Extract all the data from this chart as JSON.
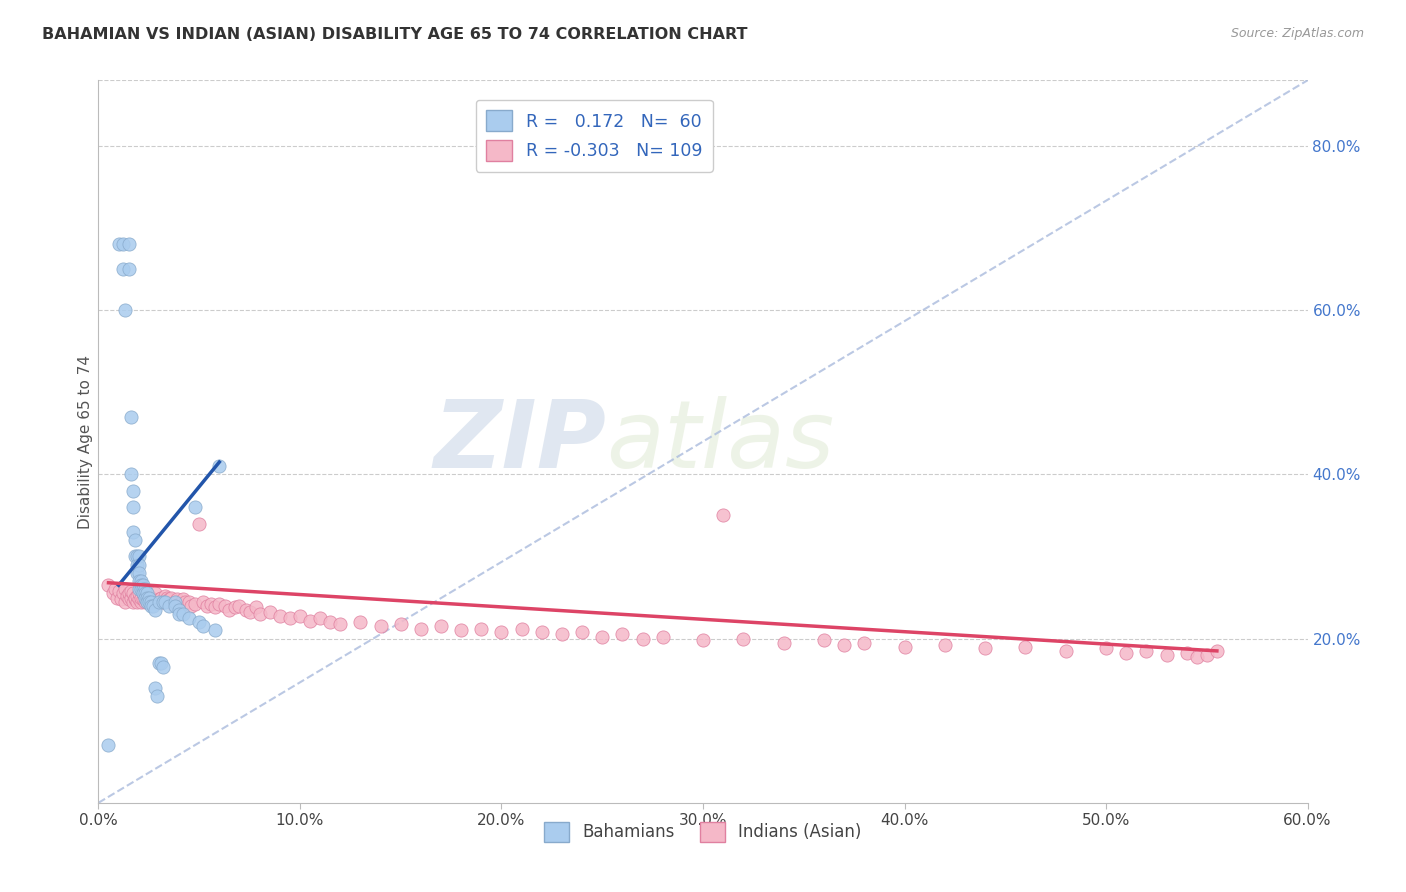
{
  "title": "BAHAMIAN VS INDIAN (ASIAN) DISABILITY AGE 65 TO 74 CORRELATION CHART",
  "source": "Source: ZipAtlas.com",
  "xlabel": "",
  "ylabel": "Disability Age 65 to 74",
  "xlim": [
    0.0,
    0.6
  ],
  "ylim": [
    0.0,
    0.88
  ],
  "xticks": [
    0.0,
    0.1,
    0.2,
    0.3,
    0.4,
    0.5,
    0.6
  ],
  "yticks_right": [
    0.2,
    0.4,
    0.6,
    0.8
  ],
  "legend1_label": "Bahamians",
  "legend2_label": "Indians (Asian)",
  "R1": 0.172,
  "N1": 60,
  "R2": -0.303,
  "N2": 109,
  "blue_dot_color": "#aaccee",
  "blue_edge_color": "#88aacc",
  "pink_dot_color": "#f5b8c8",
  "pink_edge_color": "#e080a0",
  "trend_blue": "#2255aa",
  "trend_pink": "#dd4466",
  "ref_line_color": "#aabbdd",
  "watermark_color": "#dde8f0",
  "bahamians_x": [
    0.005,
    0.01,
    0.012,
    0.012,
    0.013,
    0.015,
    0.015,
    0.016,
    0.016,
    0.017,
    0.017,
    0.017,
    0.018,
    0.018,
    0.019,
    0.019,
    0.019,
    0.02,
    0.02,
    0.02,
    0.02,
    0.02,
    0.021,
    0.021,
    0.021,
    0.022,
    0.022,
    0.022,
    0.023,
    0.023,
    0.023,
    0.024,
    0.024,
    0.024,
    0.025,
    0.025,
    0.026,
    0.026,
    0.027,
    0.028,
    0.028,
    0.029,
    0.03,
    0.03,
    0.031,
    0.032,
    0.032,
    0.033,
    0.035,
    0.038,
    0.038,
    0.04,
    0.04,
    0.042,
    0.045,
    0.048,
    0.05,
    0.052,
    0.058,
    0.06
  ],
  "bahamians_y": [
    0.07,
    0.68,
    0.68,
    0.65,
    0.6,
    0.68,
    0.65,
    0.47,
    0.4,
    0.38,
    0.36,
    0.33,
    0.32,
    0.3,
    0.3,
    0.29,
    0.28,
    0.3,
    0.29,
    0.28,
    0.27,
    0.26,
    0.27,
    0.265,
    0.26,
    0.265,
    0.26,
    0.255,
    0.26,
    0.255,
    0.25,
    0.255,
    0.25,
    0.245,
    0.25,
    0.245,
    0.245,
    0.24,
    0.24,
    0.235,
    0.14,
    0.13,
    0.245,
    0.17,
    0.17,
    0.245,
    0.165,
    0.245,
    0.24,
    0.245,
    0.24,
    0.235,
    0.23,
    0.23,
    0.225,
    0.36,
    0.22,
    0.215,
    0.21,
    0.41
  ],
  "indians_x": [
    0.005,
    0.007,
    0.008,
    0.009,
    0.01,
    0.011,
    0.012,
    0.013,
    0.013,
    0.014,
    0.015,
    0.015,
    0.016,
    0.016,
    0.017,
    0.017,
    0.018,
    0.018,
    0.019,
    0.019,
    0.02,
    0.02,
    0.021,
    0.021,
    0.022,
    0.022,
    0.023,
    0.023,
    0.024,
    0.025,
    0.025,
    0.026,
    0.027,
    0.028,
    0.029,
    0.03,
    0.031,
    0.032,
    0.033,
    0.034,
    0.035,
    0.036,
    0.037,
    0.038,
    0.039,
    0.04,
    0.042,
    0.043,
    0.045,
    0.046,
    0.048,
    0.05,
    0.052,
    0.054,
    0.056,
    0.058,
    0.06,
    0.063,
    0.065,
    0.068,
    0.07,
    0.073,
    0.075,
    0.078,
    0.08,
    0.085,
    0.09,
    0.095,
    0.1,
    0.105,
    0.11,
    0.115,
    0.12,
    0.13,
    0.14,
    0.15,
    0.16,
    0.17,
    0.18,
    0.19,
    0.2,
    0.21,
    0.22,
    0.23,
    0.24,
    0.25,
    0.26,
    0.27,
    0.28,
    0.3,
    0.31,
    0.32,
    0.34,
    0.36,
    0.37,
    0.38,
    0.4,
    0.42,
    0.44,
    0.46,
    0.48,
    0.5,
    0.51,
    0.52,
    0.53,
    0.54,
    0.545,
    0.55,
    0.555
  ],
  "indians_y": [
    0.265,
    0.255,
    0.26,
    0.25,
    0.258,
    0.248,
    0.255,
    0.26,
    0.245,
    0.252,
    0.248,
    0.255,
    0.25,
    0.258,
    0.245,
    0.255,
    0.248,
    0.25,
    0.245,
    0.252,
    0.248,
    0.255,
    0.245,
    0.25,
    0.248,
    0.255,
    0.245,
    0.25,
    0.245,
    0.252,
    0.248,
    0.25,
    0.245,
    0.255,
    0.245,
    0.248,
    0.25,
    0.245,
    0.252,
    0.25,
    0.248,
    0.25,
    0.242,
    0.245,
    0.248,
    0.242,
    0.248,
    0.245,
    0.245,
    0.24,
    0.242,
    0.34,
    0.245,
    0.24,
    0.242,
    0.238,
    0.242,
    0.24,
    0.235,
    0.238,
    0.24,
    0.235,
    0.232,
    0.238,
    0.23,
    0.232,
    0.228,
    0.225,
    0.228,
    0.222,
    0.225,
    0.22,
    0.218,
    0.22,
    0.215,
    0.218,
    0.212,
    0.215,
    0.21,
    0.212,
    0.208,
    0.212,
    0.208,
    0.205,
    0.208,
    0.202,
    0.205,
    0.2,
    0.202,
    0.198,
    0.35,
    0.2,
    0.195,
    0.198,
    0.192,
    0.195,
    0.19,
    0.192,
    0.188,
    0.19,
    0.185,
    0.188,
    0.182,
    0.185,
    0.18,
    0.182,
    0.178,
    0.18,
    0.185
  ],
  "background_color": "#ffffff",
  "grid_color": "#cccccc"
}
